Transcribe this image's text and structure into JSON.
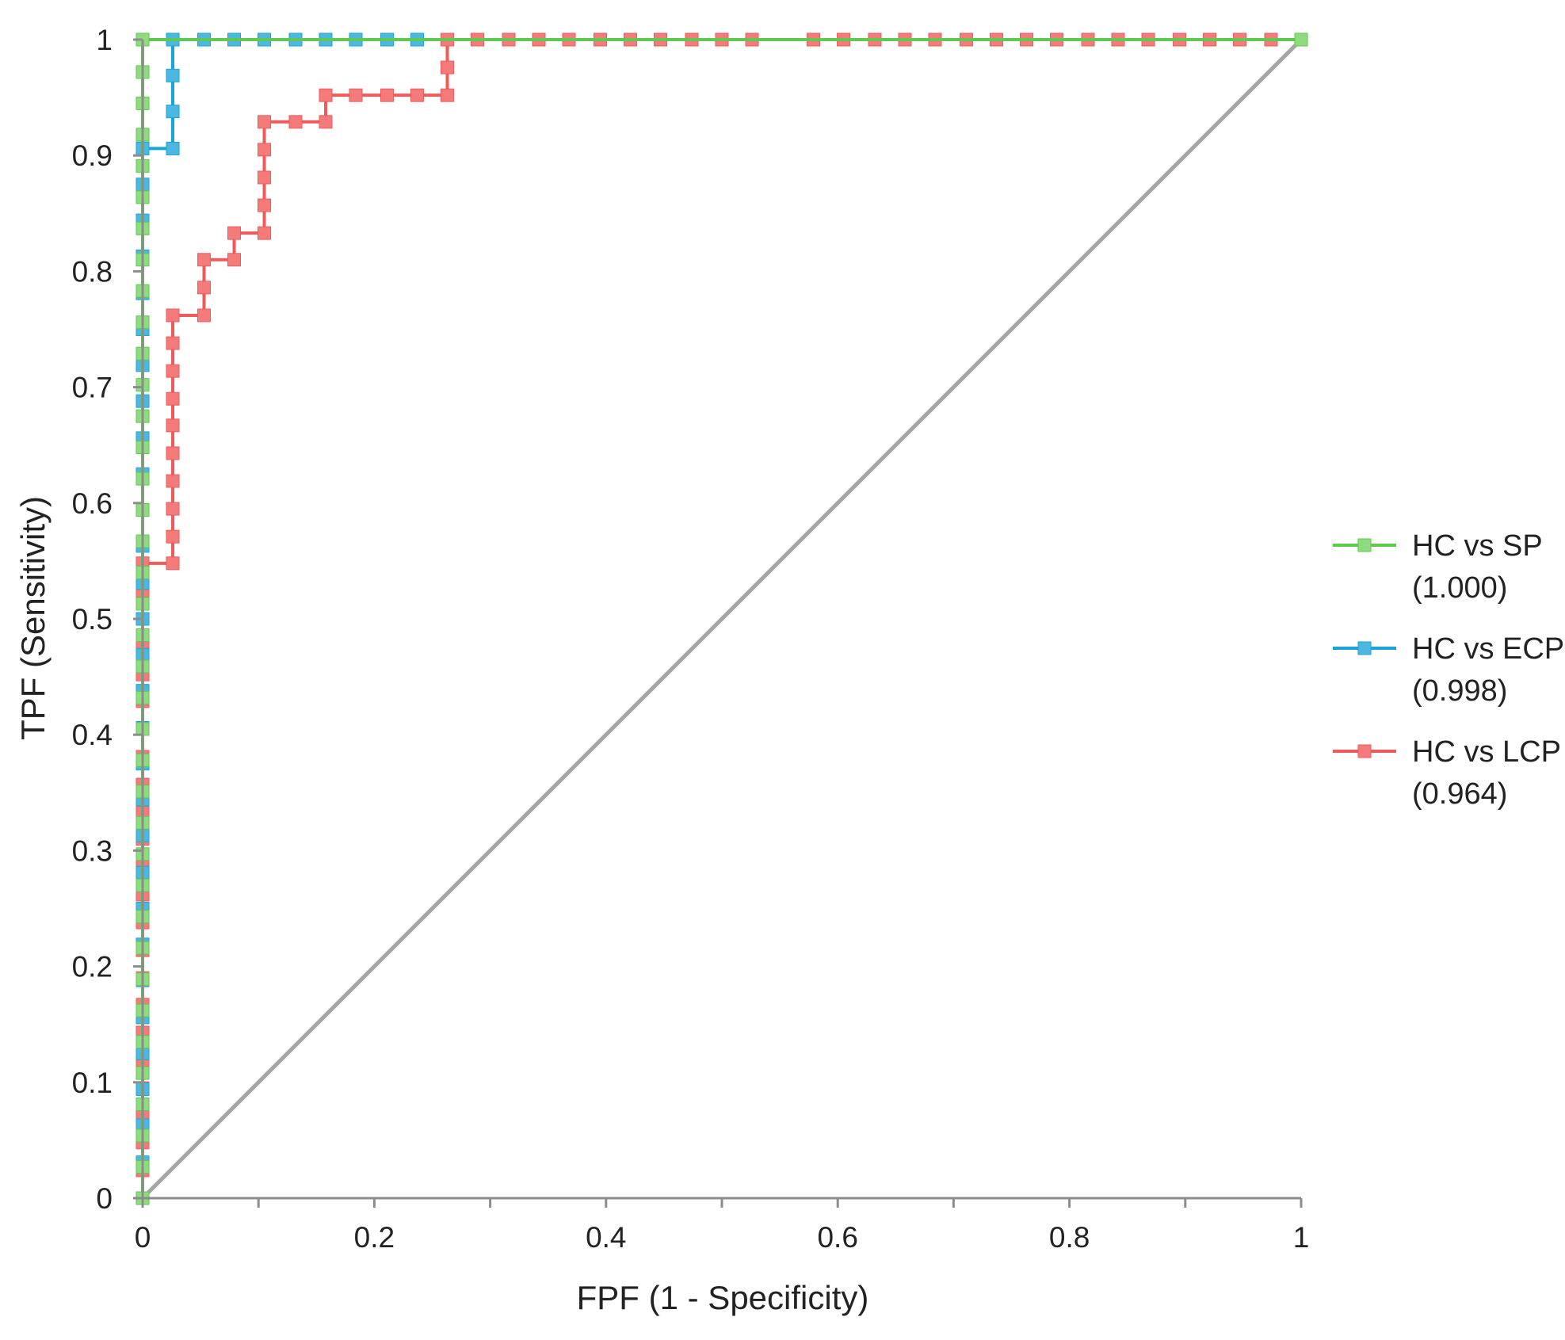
{
  "chart_data": {
    "type": "line",
    "title": "",
    "xlabel": "FPF (1 - Specificity)",
    "ylabel": "TPF (Sensitivity)",
    "xlim": [
      0,
      1
    ],
    "ylim": [
      0,
      1
    ],
    "xticks": [
      0,
      0.2,
      0.4,
      0.6,
      0.8,
      1
    ],
    "xtick_labels": [
      "0",
      "0.2",
      "0.4",
      "0.6",
      "0.8",
      "1"
    ],
    "yticks": [
      0,
      0.1,
      0.2,
      0.3,
      0.4,
      0.5,
      0.6,
      0.7,
      0.8,
      0.9,
      1
    ],
    "ytick_labels": [
      "0",
      "0.1",
      "0.2",
      "0.3",
      "0.4",
      "0.5",
      "0.6",
      "0.7",
      "0.8",
      "0.9",
      "1"
    ],
    "minor_xtick_step": 0.1,
    "legend_position": "right",
    "reference_line": {
      "x": [
        0,
        1
      ],
      "y": [
        0,
        1
      ],
      "color": "#a6a6a6"
    },
    "series": [
      {
        "name": "HC vs SP",
        "auc": "(1.000)",
        "color": "#5dc94e",
        "marker_color": "#8fdc7e",
        "x": [
          0,
          0,
          0,
          0,
          0,
          0,
          0,
          0,
          0,
          0,
          0,
          0,
          0,
          0,
          0,
          0,
          0,
          0,
          0,
          0,
          0,
          0,
          0,
          0,
          0,
          0,
          0,
          0,
          0,
          0,
          0,
          0,
          0,
          0,
          0,
          0,
          0,
          0,
          0,
          1
        ],
        "y": [
          0,
          0.027,
          0.054,
          0.081,
          0.108,
          0.135,
          0.162,
          0.189,
          0.216,
          0.243,
          0.27,
          0.297,
          0.324,
          0.351,
          0.378,
          0.405,
          0.432,
          0.459,
          0.486,
          0.513,
          0.54,
          0.567,
          0.594,
          0.621,
          0.648,
          0.675,
          0.702,
          0.729,
          0.756,
          0.783,
          0.81,
          0.837,
          0.864,
          0.891,
          0.918,
          0.945,
          0.972,
          1,
          1,
          1
        ]
      },
      {
        "name": "HC vs ECP",
        "auc": "(0.998)",
        "color": "#1aa3d9",
        "marker_color": "#4cb8e2",
        "x": [
          0,
          0,
          0,
          0,
          0,
          0,
          0,
          0,
          0,
          0,
          0,
          0,
          0,
          0,
          0,
          0,
          0,
          0,
          0,
          0,
          0,
          0,
          0,
          0,
          0,
          0,
          0,
          0,
          0,
          0,
          0,
          0,
          0,
          0,
          0.026,
          0.026,
          0.026,
          0.026,
          0.053,
          0.079,
          0.105,
          0.132,
          0.158,
          0.184,
          0.211,
          0.237,
          1
        ],
        "y": [
          0,
          0.031,
          0.063,
          0.094,
          0.125,
          0.156,
          0.188,
          0.219,
          0.25,
          0.281,
          0.313,
          0.344,
          0.375,
          0.406,
          0.438,
          0.469,
          0.5,
          0.531,
          0.563,
          0.594,
          0.625,
          0.656,
          0.688,
          0.719,
          0.75,
          0.781,
          0.813,
          0.844,
          0.875,
          0.906,
          0.906,
          0.906,
          0.906,
          0.906,
          0.906,
          0.938,
          0.969,
          1,
          1,
          1,
          1,
          1,
          1,
          1,
          1,
          1,
          1
        ]
      },
      {
        "name": "HC vs LCP",
        "auc": "(0.964)",
        "color": "#f05a5a",
        "marker_color": "#f57a7a",
        "x": [
          0,
          0,
          0,
          0,
          0,
          0,
          0,
          0,
          0,
          0,
          0,
          0,
          0,
          0,
          0,
          0,
          0,
          0,
          0,
          0,
          0,
          0,
          0,
          0,
          0.026,
          0.026,
          0.026,
          0.026,
          0.026,
          0.026,
          0.026,
          0.026,
          0.026,
          0.026,
          0.053,
          0.053,
          0.053,
          0.079,
          0.079,
          0.105,
          0.105,
          0.105,
          0.105,
          0.105,
          0.132,
          0.158,
          0.158,
          0.184,
          0.211,
          0.237,
          0.263,
          0.263,
          0.263,
          0.289,
          0.316,
          0.342,
          0.368,
          0.395,
          0.421,
          0.447,
          0.474,
          0.5,
          0.526,
          0.579,
          0.605,
          0.632,
          0.658,
          0.684,
          0.711,
          0.737,
          0.763,
          0.789,
          0.816,
          0.842,
          0.868,
          0.895,
          0.921,
          0.947,
          0.974,
          1
        ],
        "y": [
          0,
          0.024,
          0.048,
          0.071,
          0.095,
          0.119,
          0.143,
          0.167,
          0.19,
          0.214,
          0.238,
          0.262,
          0.286,
          0.31,
          0.333,
          0.357,
          0.381,
          0.405,
          0.429,
          0.452,
          0.476,
          0.5,
          0.524,
          0.548,
          0.548,
          0.571,
          0.595,
          0.619,
          0.643,
          0.667,
          0.69,
          0.714,
          0.738,
          0.762,
          0.762,
          0.786,
          0.81,
          0.81,
          0.833,
          0.833,
          0.857,
          0.881,
          0.905,
          0.929,
          0.929,
          0.929,
          0.952,
          0.952,
          0.952,
          0.952,
          0.952,
          0.976,
          1,
          1,
          1,
          1,
          1,
          1,
          1,
          1,
          1,
          1,
          1,
          1,
          1,
          1,
          1,
          1,
          1,
          1,
          1,
          1,
          1,
          1,
          1,
          1,
          1,
          1,
          1,
          1
        ]
      }
    ]
  }
}
